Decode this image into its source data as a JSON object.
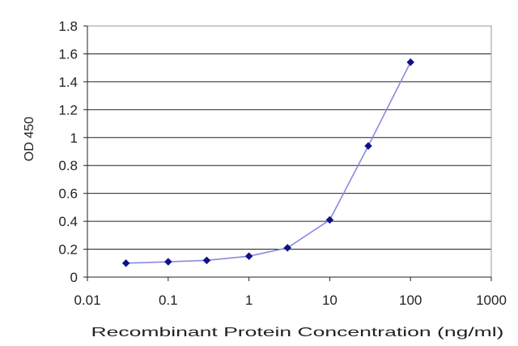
{
  "chart_data": {
    "type": "line",
    "title": "",
    "xlabel": "Recombinant Protein Concentration (ng/ml)",
    "ylabel": "OD 450",
    "x_scale": "log",
    "xlim": [
      0.01,
      1000
    ],
    "ylim": [
      0,
      1.8
    ],
    "x_ticks": [
      0.01,
      0.1,
      1,
      10,
      100,
      1000
    ],
    "x_tick_labels": [
      "0.01",
      "0.1",
      "1",
      "10",
      "100",
      "1000"
    ],
    "y_ticks": [
      0,
      0.2,
      0.4,
      0.6,
      0.8,
      1,
      1.2,
      1.4,
      1.6,
      1.8
    ],
    "y_tick_labels": [
      "0",
      "0.2",
      "0.4",
      "0.6",
      "0.8",
      "1",
      "1.2",
      "1.4",
      "1.6",
      "1.8"
    ],
    "grid": "horizontal",
    "legend": "none",
    "series": [
      {
        "x": [
          0.03,
          0.1,
          0.3,
          1,
          3,
          10,
          30,
          100
        ],
        "y": [
          0.1,
          0.11,
          0.12,
          0.15,
          0.21,
          0.41,
          0.94,
          1.54
        ]
      }
    ],
    "colors": {
      "line": "#8a8ae0",
      "marker": "#10108a",
      "grid": "#222222",
      "plot_border": "#999999",
      "text": "#222222"
    }
  }
}
